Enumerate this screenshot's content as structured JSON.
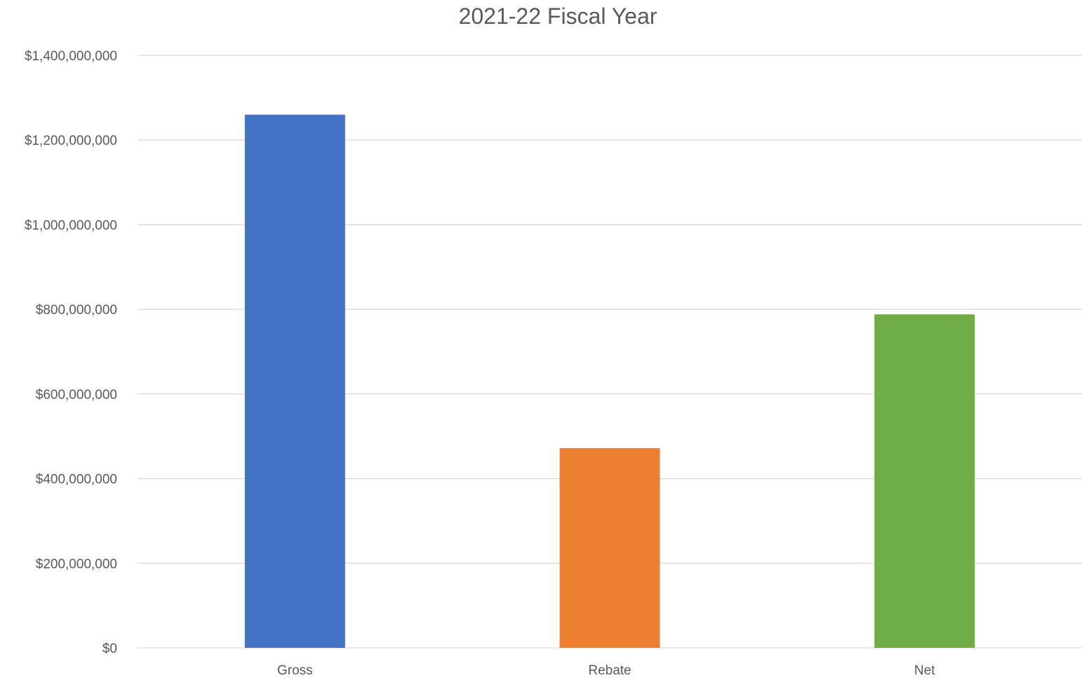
{
  "chart_data": {
    "type": "bar",
    "title": "2021-22 Fiscal Year",
    "xlabel": "",
    "ylabel": "",
    "categories": [
      "Gross",
      "Rebate",
      "Net"
    ],
    "values": [
      1260000000,
      472000000,
      788000000
    ],
    "colors": [
      "#4472C4",
      "#ED7D31",
      "#70AD47"
    ],
    "ylim": [
      0,
      1400000000
    ],
    "yticks": [
      0,
      200000000,
      400000000,
      600000000,
      800000000,
      1000000000,
      1200000000,
      1400000000
    ],
    "ytick_labels": [
      "$0",
      "$200,000,000",
      "$400,000,000",
      "$600,000,000",
      "$800,000,000",
      "$1,000,000,000",
      "$1,200,000,000",
      "$1,400,000,000"
    ],
    "grid": true,
    "legend": "none"
  }
}
